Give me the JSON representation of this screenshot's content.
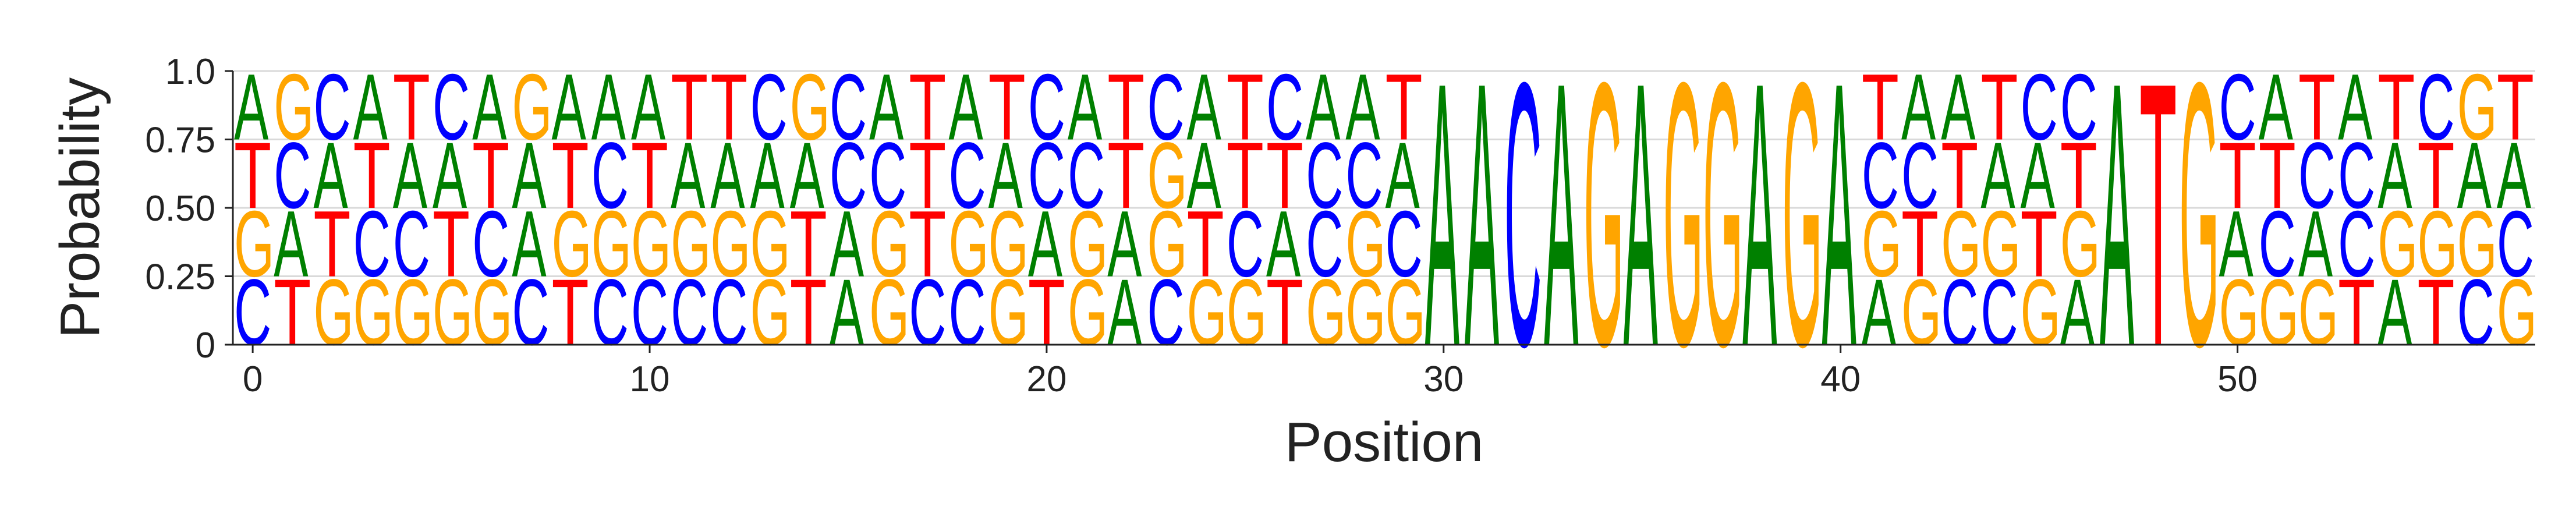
{
  "chart_data": {
    "type": "sequence-logo",
    "xlabel": "Position",
    "ylabel": "Probability",
    "xlim": [
      -0.5,
      57.5
    ],
    "ylim": [
      0,
      1.0
    ],
    "xticks": [
      0,
      10,
      20,
      30,
      40,
      50
    ],
    "xtick_labels": [
      "0",
      "10",
      "20",
      "30",
      "40",
      "50"
    ],
    "yticks": [
      0,
      0.25,
      0.5,
      0.75,
      1.0
    ],
    "ytick_labels": [
      "0",
      "0.25",
      "0.50",
      "0.75",
      "1.0"
    ],
    "grid": "horizontal",
    "colors": {
      "A": "#008000",
      "C": "#0000ff",
      "G": "#ffa500",
      "T": "#ff0000"
    },
    "positions": [
      {
        "x": 0,
        "stack": "CGTA"
      },
      {
        "x": 1,
        "stack": "TACG"
      },
      {
        "x": 2,
        "stack": "GTAC"
      },
      {
        "x": 3,
        "stack": "GCTA"
      },
      {
        "x": 4,
        "stack": "GCAT"
      },
      {
        "x": 5,
        "stack": "GTAC"
      },
      {
        "x": 6,
        "stack": "GCTA"
      },
      {
        "x": 7,
        "stack": "CAAG"
      },
      {
        "x": 8,
        "stack": "TGTA"
      },
      {
        "x": 9,
        "stack": "CGCA"
      },
      {
        "x": 10,
        "stack": "CGTA"
      },
      {
        "x": 11,
        "stack": "CGAT"
      },
      {
        "x": 12,
        "stack": "CGAT"
      },
      {
        "x": 13,
        "stack": "GGAC"
      },
      {
        "x": 14,
        "stack": "TTAG"
      },
      {
        "x": 15,
        "stack": "AACC"
      },
      {
        "x": 16,
        "stack": "GGCA"
      },
      {
        "x": 17,
        "stack": "CTTT"
      },
      {
        "x": 18,
        "stack": "CGCA"
      },
      {
        "x": 19,
        "stack": "GGAT"
      },
      {
        "x": 20,
        "stack": "TACC"
      },
      {
        "x": 21,
        "stack": "GGCA"
      },
      {
        "x": 22,
        "stack": "AATT"
      },
      {
        "x": 23,
        "stack": "CGGC"
      },
      {
        "x": 24,
        "stack": "GTAA"
      },
      {
        "x": 25,
        "stack": "GCTT"
      },
      {
        "x": 26,
        "stack": "TATC"
      },
      {
        "x": 27,
        "stack": "GCCA"
      },
      {
        "x": 28,
        "stack": "GGCA"
      },
      {
        "x": 29,
        "stack": "GCAT"
      },
      {
        "x": 30,
        "stack": "A"
      },
      {
        "x": 31,
        "stack": "A"
      },
      {
        "x": 32,
        "stack": "C"
      },
      {
        "x": 33,
        "stack": "A"
      },
      {
        "x": 34,
        "stack": "G"
      },
      {
        "x": 35,
        "stack": "A"
      },
      {
        "x": 36,
        "stack": "G"
      },
      {
        "x": 37,
        "stack": "G"
      },
      {
        "x": 38,
        "stack": "A"
      },
      {
        "x": 39,
        "stack": "G"
      },
      {
        "x": 40,
        "stack": "A"
      },
      {
        "x": 41,
        "stack": "AGCT"
      },
      {
        "x": 42,
        "stack": "GTCA"
      },
      {
        "x": 43,
        "stack": "CGTA"
      },
      {
        "x": 44,
        "stack": "CGAT"
      },
      {
        "x": 45,
        "stack": "GTAC"
      },
      {
        "x": 46,
        "stack": "AGTC"
      },
      {
        "x": 47,
        "stack": "A"
      },
      {
        "x": 48,
        "stack": "T"
      },
      {
        "x": 49,
        "stack": "G"
      },
      {
        "x": 50,
        "stack": "GATC"
      },
      {
        "x": 51,
        "stack": "GCTA"
      },
      {
        "x": 52,
        "stack": "GACT"
      },
      {
        "x": 53,
        "stack": "TCCA"
      },
      {
        "x": 54,
        "stack": "AGAT"
      },
      {
        "x": 55,
        "stack": "TGTC"
      },
      {
        "x": 56,
        "stack": "CGAG"
      },
      {
        "x": 57,
        "stack": "GCAT"
      }
    ]
  }
}
